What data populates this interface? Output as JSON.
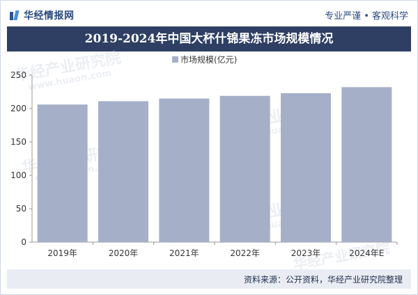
{
  "header": {
    "logo_text": "华经情报网",
    "slogan": "专业严谨 • 客观科学"
  },
  "watermark": {
    "text_cn": "华经产业研究院",
    "text_en": "www.huaon.com"
  },
  "chart_data": {
    "type": "bar",
    "title": "2019-2024年中国大杯什锦果冻市场规模情况",
    "categories": [
      "2019年",
      "2020年",
      "2021年",
      "2022年",
      "2023年",
      "2024年E"
    ],
    "series": [
      {
        "name": "市场规模(亿元)",
        "values": [
          206,
          211,
          215,
          219,
          223,
          232
        ]
      }
    ],
    "ylim": [
      0,
      250
    ],
    "yticks": [
      0,
      50,
      100,
      150,
      200,
      250
    ],
    "legend_position": "top-center",
    "grid": false,
    "bar_color": "#a5b0c8"
  },
  "footer": {
    "source": "资料来源：公开资料，华经产业研究院整理"
  }
}
